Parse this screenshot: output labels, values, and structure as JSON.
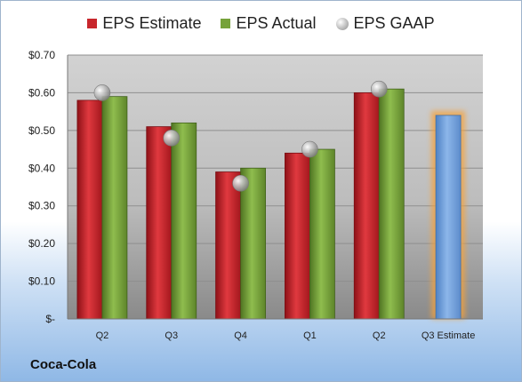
{
  "chart_data": {
    "type": "bar",
    "categories": [
      "Q2",
      "Q3",
      "Q4",
      "Q1",
      "Q2",
      "Q3 Estimate"
    ],
    "series": [
      {
        "name": "EPS Estimate",
        "values": [
          0.58,
          0.51,
          0.39,
          0.44,
          0.6,
          0.54
        ],
        "color": "#c8262c"
      },
      {
        "name": "EPS Actual",
        "values": [
          0.59,
          0.52,
          0.4,
          0.45,
          0.61,
          null
        ],
        "color": "#76a23a"
      },
      {
        "name": "EPS GAAP",
        "values": [
          0.6,
          0.48,
          0.36,
          0.45,
          0.61,
          null
        ],
        "color": "#a8a8a8"
      }
    ],
    "estimate_bar": {
      "category": "Q3 Estimate",
      "value": 0.54,
      "color": "#6f9fd8",
      "glow": "#f5a23a"
    },
    "ylim": [
      0,
      0.7
    ],
    "yticks": [
      {
        "value": 0,
        "label": "$-"
      },
      {
        "value": 0.1,
        "label": "$0.10"
      },
      {
        "value": 0.2,
        "label": "$0.20"
      },
      {
        "value": 0.3,
        "label": "$0.30"
      },
      {
        "value": 0.4,
        "label": "$0.40"
      },
      {
        "value": 0.5,
        "label": "$0.50"
      },
      {
        "value": 0.6,
        "label": "$0.60"
      },
      {
        "value": 0.7,
        "label": "$0.70"
      }
    ],
    "grid": true,
    "legend_position": "top"
  },
  "legend": {
    "estimate": "EPS Estimate",
    "actual": "EPS Actual",
    "gaap": "EPS GAAP"
  },
  "company_label": "Coca-Cola"
}
